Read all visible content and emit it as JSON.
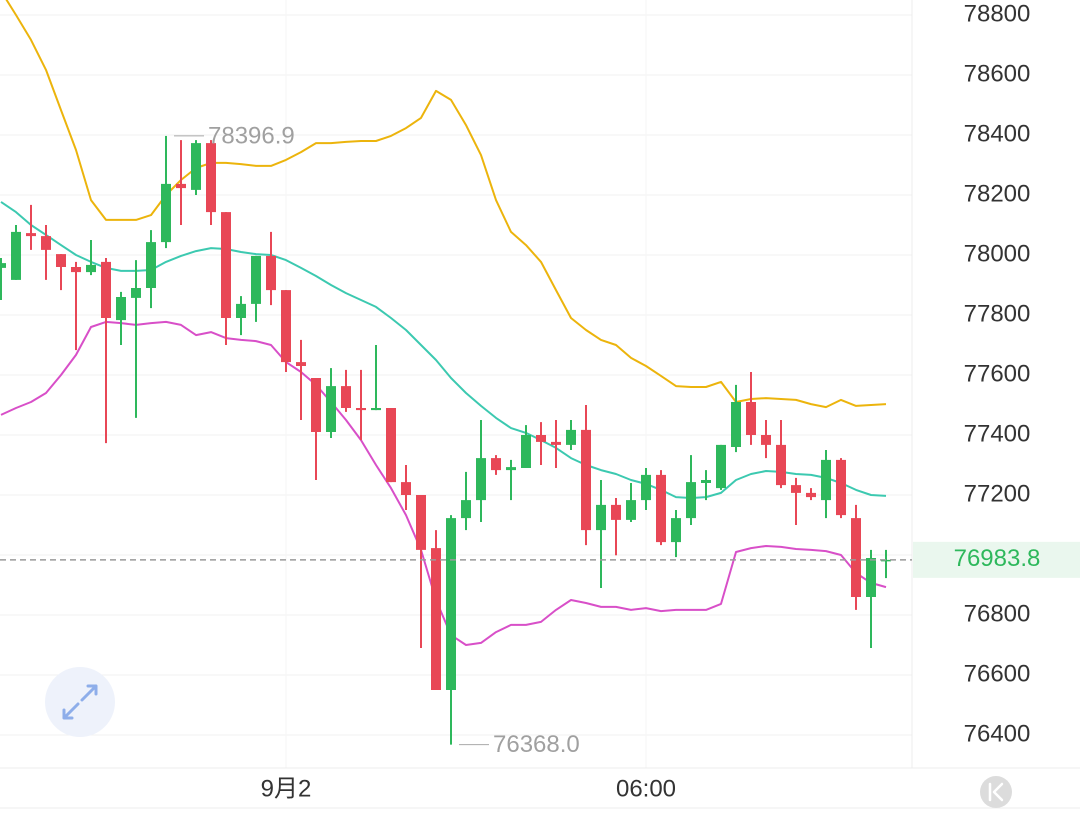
{
  "chart_data": {
    "type": "candlestick",
    "categories": [
      null,
      null,
      null,
      null,
      null,
      null,
      null,
      null,
      null,
      null,
      null,
      null,
      null,
      null,
      null,
      null,
      null,
      null,
      null,
      "9月2",
      null,
      null,
      null,
      null,
      null,
      null,
      null,
      null,
      null,
      null,
      null,
      null,
      null,
      null,
      null,
      null,
      null,
      null,
      null,
      null,
      null,
      null,
      null,
      "06:00",
      null,
      null,
      null,
      null,
      null,
      null,
      null,
      null,
      null,
      null,
      null,
      null,
      null,
      null,
      null,
      null
    ],
    "open": [
      77957,
      77917,
      78073,
      78063,
      78003,
      77960,
      77943,
      77977,
      77783,
      77857,
      77890,
      78043,
      78237,
      78217,
      78373,
      78143,
      77790,
      77837,
      77997,
      77883,
      77643,
      77590,
      77410,
      77563,
      77490,
      77483,
      77490,
      77243,
      77200,
      77023,
      76550,
      77123,
      77183,
      77323,
      77283,
      77290,
      77400,
      77377,
      77367,
      77417,
      77083,
      77167,
      77117,
      77183,
      77267,
      77043,
      77123,
      77240,
      77223,
      77360,
      77510,
      77400,
      77367,
      77233,
      77207,
      77183,
      77317,
      77123,
      76860,
      76980
    ],
    "high": [
      77990,
      78100,
      78167,
      78100,
      78003,
      77977,
      78050,
      77990,
      77877,
      77983,
      78083,
      78396.9,
      78383,
      78383,
      78383,
      78143,
      77863,
      77997,
      78077,
      77883,
      77717,
      77590,
      77623,
      77617,
      77617,
      77700,
      77490,
      77300,
      77200,
      77083,
      77133,
      77277,
      77450,
      77333,
      77317,
      77433,
      77443,
      77450,
      77450,
      77500,
      77250,
      77190,
      77240,
      77290,
      77283,
      77150,
      77333,
      77283,
      77367,
      77567,
      77610,
      77450,
      77450,
      77257,
      77223,
      77350,
      77323,
      77167,
      77017,
      77017
    ],
    "low": [
      77850,
      77917,
      78017,
      77917,
      77883,
      77683,
      77933,
      77373,
      77700,
      77457,
      77823,
      78023,
      78100,
      78200,
      78100,
      77700,
      77733,
      77777,
      77833,
      77610,
      77450,
      77250,
      77390,
      77477,
      77383,
      77483,
      77243,
      77150,
      76690,
      76550,
      76368,
      77083,
      77110,
      77267,
      77183,
      77290,
      77300,
      77290,
      77350,
      77033,
      76890,
      76999,
      77110,
      77150,
      77033,
      76993,
      77100,
      77183,
      77217,
      77343,
      77367,
      77323,
      77223,
      77100,
      77183,
      77123,
      77123,
      76817,
      76690,
      76923
    ],
    "close": [
      77973,
      78077,
      78063,
      78017,
      77960,
      77943,
      77967,
      77790,
      77860,
      77890,
      78043,
      78237,
      78223,
      78373,
      78143,
      77790,
      77837,
      77997,
      77883,
      77643,
      77630,
      77410,
      77563,
      77490,
      77483,
      77490,
      77243,
      77200,
      77017,
      76550,
      77123,
      77183,
      77323,
      77283,
      77293,
      77400,
      77377,
      77367,
      77417,
      77083,
      77167,
      77117,
      77183,
      77267,
      77043,
      77123,
      77243,
      77250,
      77367,
      77510,
      77400,
      77367,
      77233,
      77207,
      77193,
      77317,
      77133,
      76860,
      76990,
      76983.8
    ],
    "up_color": "#2eb85c",
    "down_color": "#e84756",
    "overlays": [
      {
        "color": "#ecb40c",
        "values": [
          78880,
          78800,
          78717,
          78617,
          78483,
          78350,
          78183,
          78117,
          78117,
          78117,
          78133,
          78200,
          78250,
          78290,
          78307,
          78307,
          78303,
          78297,
          78297,
          78317,
          78343,
          78373,
          78373,
          78377,
          78380,
          78380,
          78397,
          78423,
          78457,
          78547,
          78517,
          78433,
          78333,
          78183,
          78077,
          78033,
          77977,
          77883,
          77790,
          77750,
          77717,
          77700,
          77657,
          77630,
          77597,
          77563,
          77560,
          77560,
          77577,
          77510,
          77520,
          77523,
          77520,
          77517,
          77503,
          77493,
          77517,
          77497,
          77500,
          77503
        ]
      },
      {
        "color": "#3cc9b0",
        "values": [
          78177,
          78143,
          78100,
          78067,
          78033,
          78000,
          77977,
          77957,
          77947,
          77947,
          77950,
          77977,
          77997,
          78013,
          78023,
          78020,
          78010,
          78003,
          78000,
          77983,
          77957,
          77930,
          77900,
          77873,
          77850,
          77827,
          77790,
          77750,
          77700,
          77650,
          77590,
          77540,
          77497,
          77457,
          77423,
          77407,
          77383,
          77357,
          77323,
          77300,
          77283,
          77270,
          77250,
          77237,
          77217,
          77193,
          77190,
          77193,
          77207,
          77250,
          77270,
          77280,
          77277,
          77270,
          77267,
          77257,
          77240,
          77217,
          77200,
          77197
        ]
      },
      {
        "color": "#d84fc8",
        "values": [
          77467,
          77490,
          77510,
          77540,
          77600,
          77667,
          77760,
          77777,
          77773,
          77767,
          77773,
          77777,
          77767,
          77733,
          77743,
          77723,
          77717,
          77713,
          77700,
          77643,
          77610,
          77567,
          77510,
          77450,
          77383,
          77300,
          77223,
          77133,
          77017,
          76850,
          76733,
          76700,
          76707,
          76743,
          76767,
          76767,
          76777,
          76817,
          76850,
          76840,
          76827,
          76827,
          76817,
          76823,
          76813,
          76817,
          76817,
          76817,
          76837,
          77010,
          77023,
          77030,
          77027,
          77020,
          77017,
          77013,
          77000,
          76940,
          76907,
          76893
        ]
      }
    ],
    "ylim": [
      76290,
      78850
    ],
    "yticks": [
      76400,
      76600,
      76800,
      77000,
      77200,
      77400,
      77600,
      77800,
      78000,
      78200,
      78400,
      78600,
      78800
    ],
    "grid": true,
    "last_price": 76983.8,
    "max_marker": {
      "value": 78396.9,
      "label": "78396.9"
    },
    "min_marker": {
      "value": 76368,
      "label": "76368.0"
    }
  }
}
